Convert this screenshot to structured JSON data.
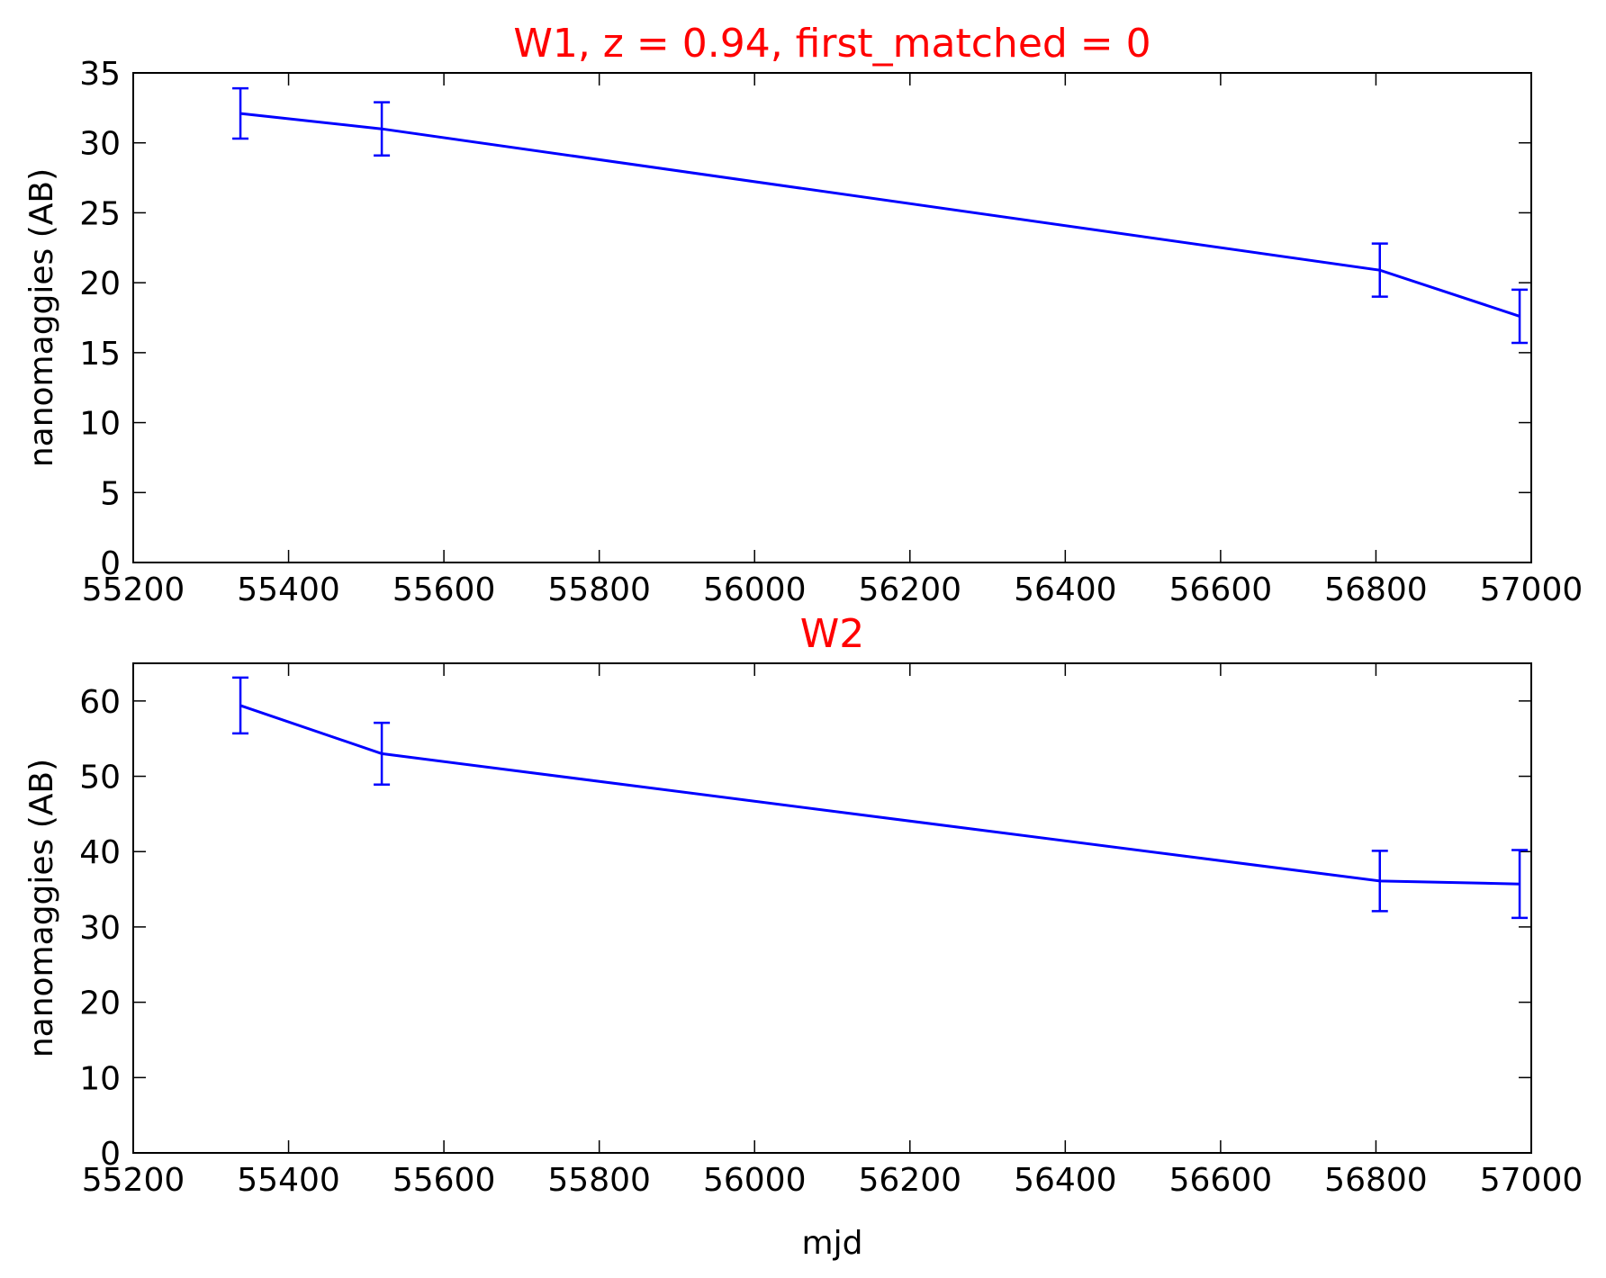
{
  "figure": {
    "line_color": "#0000ff",
    "title_color": "#ff0000",
    "text_color": "#000000",
    "background": "#ffffff"
  },
  "chart_data": [
    {
      "type": "line",
      "title": "W1, z = 0.94, first_matched = 0",
      "xlabel": "",
      "ylabel": "nanomaggies (AB)",
      "xlim": [
        55200,
        57000
      ],
      "ylim": [
        0,
        35
      ],
      "xticks": [
        55200,
        55400,
        55600,
        55800,
        56000,
        56200,
        56400,
        56600,
        56800,
        57000
      ],
      "yticks": [
        0,
        5,
        10,
        15,
        20,
        25,
        30,
        35
      ],
      "grid": false,
      "series": [
        {
          "x": [
            55338,
            55520,
            56805,
            56985
          ],
          "y": [
            32.1,
            31.0,
            20.9,
            17.6
          ],
          "yerr": [
            1.8,
            1.9,
            1.9,
            1.9
          ]
        }
      ]
    },
    {
      "type": "line",
      "title": "W2",
      "xlabel": "mjd",
      "ylabel": "nanomaggies (AB)",
      "xlim": [
        55200,
        57000
      ],
      "ylim": [
        0,
        65
      ],
      "xticks": [
        55200,
        55400,
        55600,
        55800,
        56000,
        56200,
        56400,
        56600,
        56800,
        57000
      ],
      "yticks": [
        0,
        10,
        20,
        30,
        40,
        50,
        60
      ],
      "grid": false,
      "series": [
        {
          "x": [
            55338,
            55520,
            56805,
            56985
          ],
          "y": [
            59.4,
            53.0,
            36.1,
            35.7
          ],
          "yerr": [
            3.7,
            4.1,
            4.0,
            4.5
          ]
        }
      ]
    }
  ]
}
